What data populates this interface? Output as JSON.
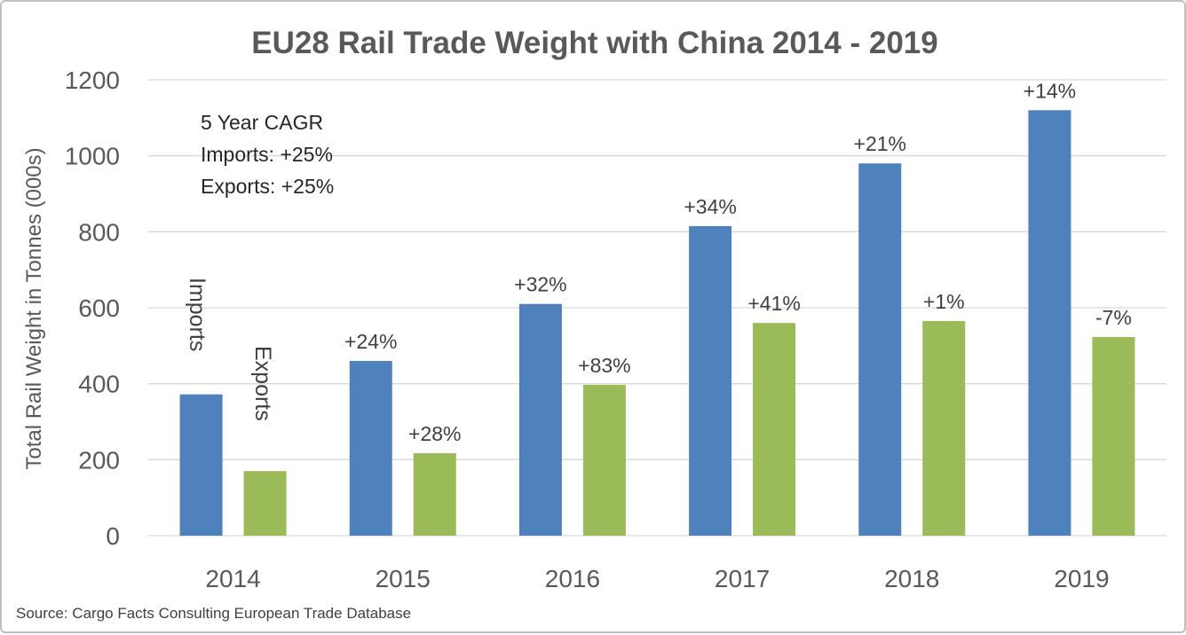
{
  "chart_data": {
    "type": "bar",
    "title": "EU28 Rail Trade Weight with China 2014 - 2019",
    "ylabel": "Total Rail Weight in Tonnes (000s)",
    "xlabel": "",
    "ylim": [
      0,
      1200
    ],
    "yticks": [
      "0",
      "200",
      "400",
      "600",
      "800",
      "1000",
      "1200"
    ],
    "categories": [
      "2014",
      "2015",
      "2016",
      "2017",
      "2018",
      "2019"
    ],
    "series": [
      {
        "name": "Imports",
        "color": "#4f81bd",
        "values": [
          372,
          460,
          610,
          815,
          980,
          1120
        ],
        "labels": [
          "",
          "+24%",
          "+32%",
          "+34%",
          "+21%",
          "+14%"
        ]
      },
      {
        "name": "Exports",
        "color": "#9bbb59",
        "values": [
          170,
          217,
          397,
          560,
          565,
          523
        ],
        "labels": [
          "",
          "+28%",
          "+83%",
          "+41%",
          "+1%",
          "-7%"
        ]
      }
    ],
    "grid": true,
    "annotation": {
      "line1": "5 Year CAGR",
      "line2": "Imports: +25%",
      "line3": "Exports: +25%"
    },
    "source": "Source: Cargo Facts Consulting European Trade Database"
  }
}
